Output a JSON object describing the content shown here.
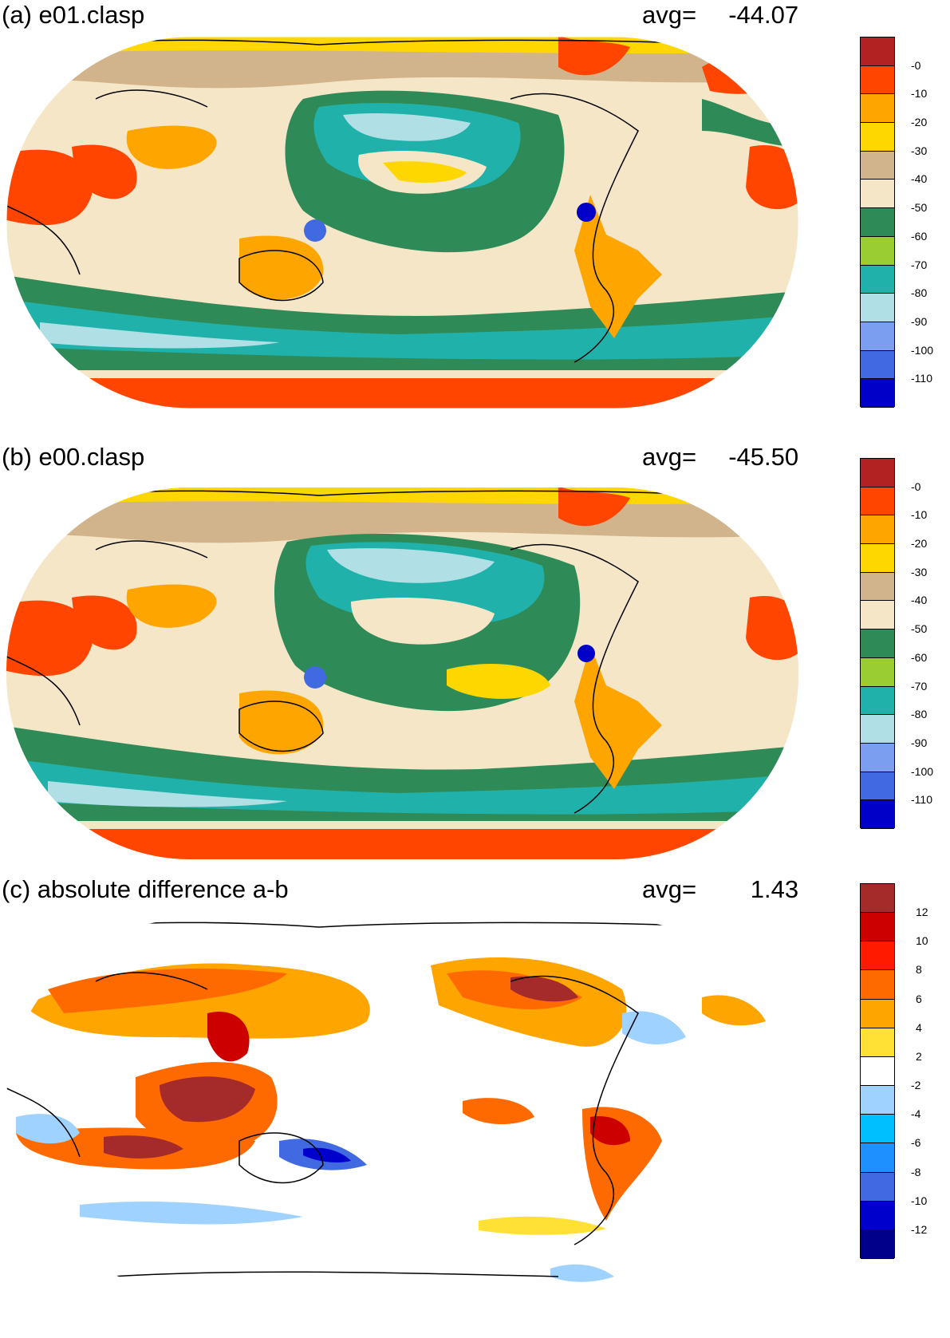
{
  "panels": [
    {
      "title": "(a) e01.clasp",
      "avg_label": "avg=",
      "avg_value": "-44.07",
      "colorbar": {
        "colors": [
          "#0000c8",
          "#4169e1",
          "#7b9ef0",
          "#b0e0e6",
          "#20b2aa",
          "#9acd32",
          "#2e8b57",
          "#f5e6c8",
          "#d2b48c",
          "#ffd700",
          "#ffa500",
          "#ff4500",
          "#b22222"
        ],
        "tick_labels": [
          "-110",
          "-100",
          "-90",
          "-80",
          "-70",
          "-60",
          "-50",
          "-40",
          "-30",
          "-20",
          "-10",
          "-0"
        ]
      }
    },
    {
      "title": "(b) e00.clasp",
      "avg_label": "avg=",
      "avg_value": "-45.50",
      "colorbar": {
        "colors": [
          "#0000c8",
          "#4169e1",
          "#7b9ef0",
          "#b0e0e6",
          "#20b2aa",
          "#9acd32",
          "#2e8b57",
          "#f5e6c8",
          "#d2b48c",
          "#ffd700",
          "#ffa500",
          "#ff4500",
          "#b22222"
        ],
        "tick_labels": [
          "-110",
          "-100",
          "-90",
          "-80",
          "-70",
          "-60",
          "-50",
          "-40",
          "-30",
          "-20",
          "-10",
          "-0"
        ]
      }
    },
    {
      "title": "(c) absolute difference a-b",
      "avg_label": "avg=",
      "avg_value": "1.43",
      "colorbar": {
        "colors": [
          "#00008b",
          "#0000cd",
          "#4169e1",
          "#1e90ff",
          "#00bfff",
          "#a0d2ff",
          "#ffffff",
          "#ffe135",
          "#ffa500",
          "#ff6a00",
          "#ff1a00",
          "#cd0000",
          "#a52a2a"
        ],
        "tick_labels": [
          "-12",
          "-10",
          "-8",
          "-6",
          "-4",
          "-2",
          "2",
          "4",
          "6",
          "8",
          "10",
          "12"
        ]
      }
    }
  ]
}
